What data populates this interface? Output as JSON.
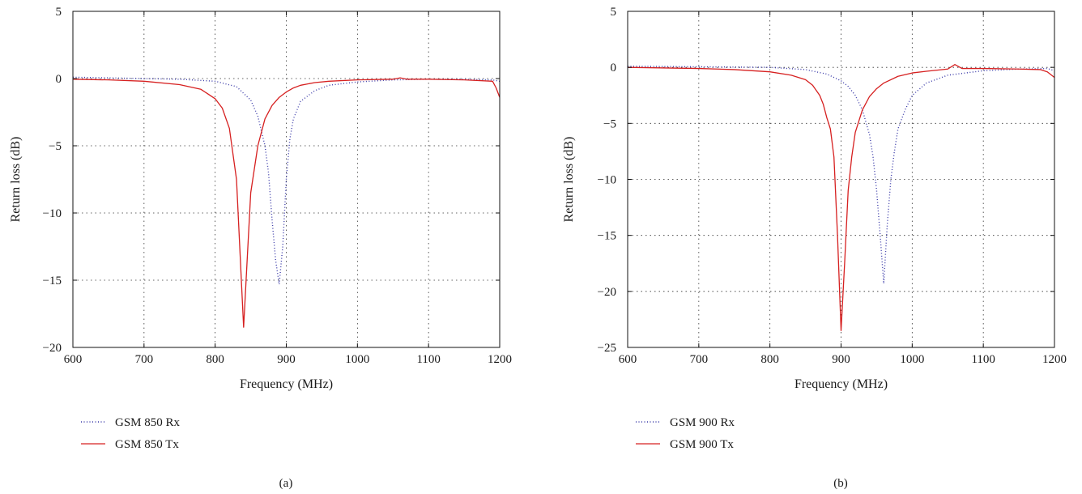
{
  "chart_data": [
    {
      "type": "line",
      "panel_label": "(a)",
      "xlabel": "Frequency (MHz)",
      "ylabel": "Return loss (dB)",
      "xlim": [
        600,
        1200
      ],
      "ylim": [
        -20,
        5
      ],
      "xticks": [
        600,
        700,
        800,
        900,
        1000,
        1100,
        1200
      ],
      "yticks": [
        5,
        0,
        -5,
        -10,
        -15,
        -20
      ],
      "grid": true,
      "legend_position": "bottom-left, below plot",
      "series": [
        {
          "name": "GSM 850 Rx",
          "color": "#3a3aa8",
          "style": "dotted",
          "x": [
            600,
            650,
            700,
            750,
            800,
            830,
            850,
            860,
            870,
            875,
            880,
            885,
            890,
            895,
            900,
            905,
            910,
            920,
            940,
            960,
            1000,
            1050,
            1100,
            1150,
            1190,
            1200
          ],
          "y": [
            0.1,
            0.05,
            0.0,
            -0.05,
            -0.2,
            -0.6,
            -1.6,
            -2.8,
            -5.0,
            -7.0,
            -10.5,
            -13.5,
            -15.3,
            -12.5,
            -7.5,
            -4.5,
            -3.0,
            -1.7,
            -0.9,
            -0.5,
            -0.25,
            -0.1,
            -0.05,
            -0.05,
            -0.1,
            -0.2
          ]
        },
        {
          "name": "GSM 850 Tx",
          "color": "#d62020",
          "style": "solid",
          "x": [
            600,
            650,
            700,
            750,
            780,
            800,
            810,
            820,
            830,
            835,
            840,
            845,
            850,
            860,
            870,
            880,
            890,
            900,
            910,
            920,
            940,
            960,
            1000,
            1050,
            1060,
            1070,
            1100,
            1150,
            1190,
            1195,
            1200
          ],
          "y": [
            -0.05,
            -0.1,
            -0.2,
            -0.45,
            -0.8,
            -1.5,
            -2.2,
            -3.7,
            -7.5,
            -13.0,
            -18.5,
            -13.5,
            -8.5,
            -5.0,
            -3.0,
            -2.0,
            -1.4,
            -1.0,
            -0.7,
            -0.5,
            -0.3,
            -0.2,
            -0.1,
            -0.05,
            0.05,
            -0.05,
            -0.05,
            -0.1,
            -0.2,
            -0.7,
            -1.4
          ]
        }
      ]
    },
    {
      "type": "line",
      "panel_label": "(b)",
      "xlabel": "Frequency (MHz)",
      "ylabel": "Return loss (dB)",
      "xlim": [
        600,
        1200
      ],
      "ylim": [
        -25,
        5
      ],
      "xticks": [
        600,
        700,
        800,
        900,
        1000,
        1100,
        1200
      ],
      "yticks": [
        5,
        0,
        -5,
        -10,
        -15,
        -20,
        -25
      ],
      "grid": true,
      "legend_position": "bottom-left, below plot",
      "series": [
        {
          "name": "GSM 900 Rx",
          "color": "#3a3aa8",
          "style": "dotted",
          "x": [
            600,
            700,
            800,
            850,
            880,
            900,
            910,
            920,
            930,
            940,
            945,
            950,
            955,
            960,
            965,
            970,
            975,
            980,
            990,
            1000,
            1020,
            1050,
            1100,
            1150,
            1190,
            1200
          ],
          "y": [
            0.1,
            0.05,
            0.0,
            -0.2,
            -0.6,
            -1.2,
            -1.7,
            -2.5,
            -3.8,
            -6.0,
            -8.0,
            -11.0,
            -15.0,
            -19.3,
            -14.0,
            -10.0,
            -7.5,
            -5.5,
            -3.8,
            -2.5,
            -1.4,
            -0.7,
            -0.3,
            -0.15,
            -0.1,
            -0.3
          ]
        },
        {
          "name": "GSM 900 Tx",
          "color": "#d62020",
          "style": "solid",
          "x": [
            600,
            700,
            750,
            800,
            830,
            850,
            860,
            870,
            875,
            880,
            885,
            890,
            895,
            900,
            905,
            910,
            915,
            920,
            930,
            940,
            950,
            960,
            980,
            1000,
            1020,
            1050,
            1060,
            1070,
            1100,
            1150,
            1180,
            1190,
            1200
          ],
          "y": [
            0.0,
            -0.1,
            -0.2,
            -0.4,
            -0.7,
            -1.1,
            -1.6,
            -2.5,
            -3.3,
            -4.5,
            -5.5,
            -8.0,
            -15.0,
            -23.5,
            -17.5,
            -11.0,
            -8.0,
            -5.8,
            -3.8,
            -2.6,
            -1.9,
            -1.4,
            -0.8,
            -0.5,
            -0.35,
            -0.15,
            0.25,
            -0.1,
            -0.1,
            -0.15,
            -0.2,
            -0.4,
            -0.9
          ]
        }
      ]
    }
  ]
}
